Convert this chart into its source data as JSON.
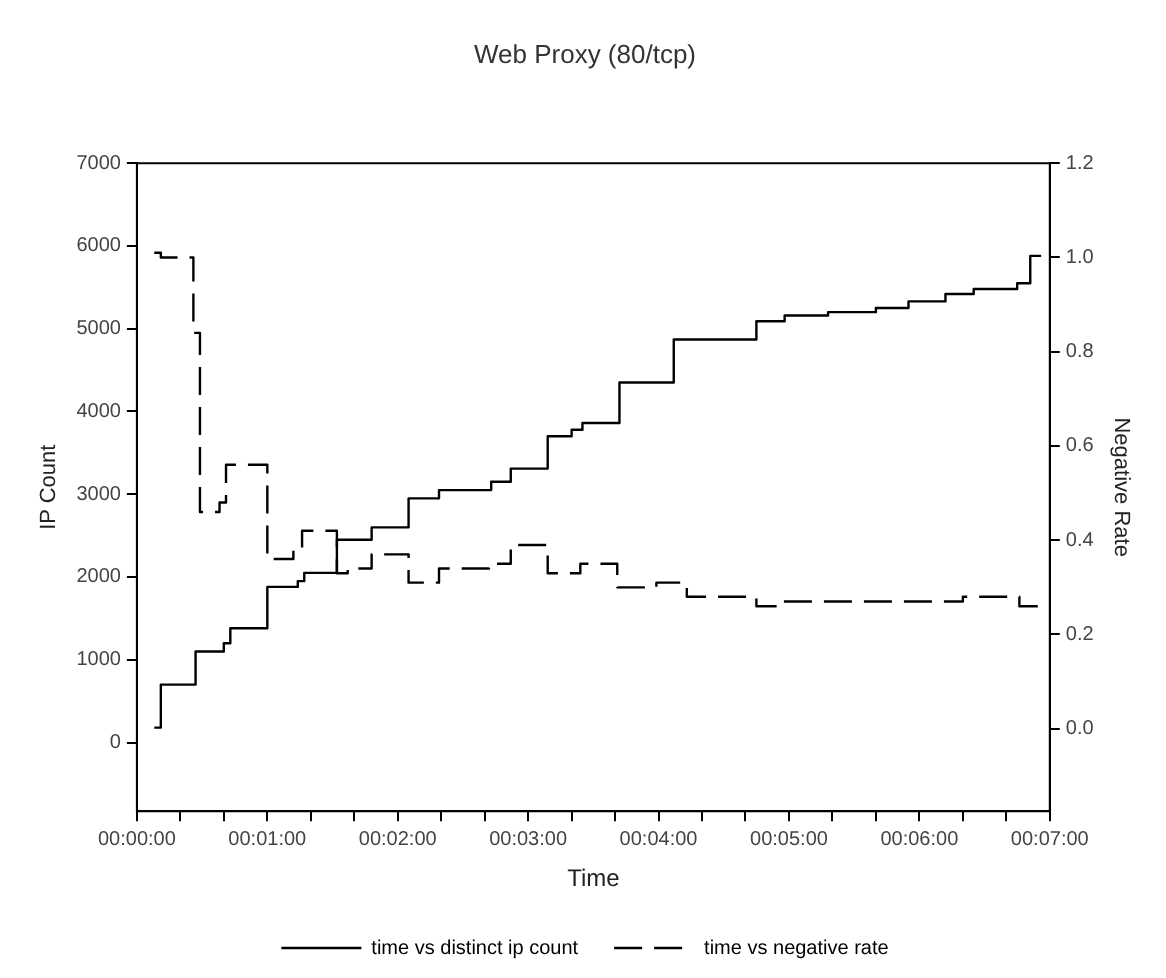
{
  "chart_data": {
    "type": "step",
    "title": "Web Proxy (80/tcp)",
    "xlabel": "Time",
    "ylabel": "IP Count",
    "y2label": "Negative Rate",
    "xlim": [
      0,
      0.116667
    ],
    "xticks": [
      {
        "value": 0,
        "label": "00:00:00"
      },
      {
        "value": 0.005556,
        "label": null
      },
      {
        "value": 0.011111,
        "label": null
      },
      {
        "value": 0.016667,
        "label": "00:01:00"
      },
      {
        "value": 0.022222,
        "label": null
      },
      {
        "value": 0.027778,
        "label": null
      },
      {
        "value": 0.033333,
        "label": "00:02:00"
      },
      {
        "value": 0.038889,
        "label": null
      },
      {
        "value": 0.044444,
        "label": null
      },
      {
        "value": 0.05,
        "label": "00:03:00"
      },
      {
        "value": 0.055556,
        "label": null
      },
      {
        "value": 0.061111,
        "label": null
      },
      {
        "value": 0.066667,
        "label": "00:04:00"
      },
      {
        "value": 0.072222,
        "label": null
      },
      {
        "value": 0.077778,
        "label": null
      },
      {
        "value": 0.083333,
        "label": "00:05:00"
      },
      {
        "value": 0.088889,
        "label": null
      },
      {
        "value": 0.094444,
        "label": null
      },
      {
        "value": 0.1,
        "label": "00:06:00"
      },
      {
        "value": 0.105556,
        "label": null
      },
      {
        "value": 0.111111,
        "label": null
      },
      {
        "value": 0.116667,
        "label": "00:07:00"
      }
    ],
    "ylim": [
      -830,
      7000
    ],
    "yticks": [
      0,
      1000,
      2000,
      3000,
      4000,
      5000,
      6000,
      7000
    ],
    "y2lim": [
      -0.175,
      1.2
    ],
    "y2ticks": [
      {
        "value": 0,
        "label": "0.0"
      },
      {
        "value": 0.2,
        "label": "0.2"
      },
      {
        "value": 0.4,
        "label": "0.4"
      },
      {
        "value": 0.6,
        "label": "0.6"
      },
      {
        "value": 0.8,
        "label": "0.8"
      },
      {
        "value": 1,
        "label": "1.0"
      },
      {
        "value": 1.2,
        "label": "1.2"
      }
    ],
    "grid": false,
    "legend": "bottom",
    "marker": "none",
    "series": [
      {
        "name": "time vs distinct ip count",
        "color": "#000000",
        "line_style": "solid",
        "x": [
          0.00222,
          0.00306,
          0.0075,
          0.01111,
          0.01194,
          0.01667,
          0.02056,
          0.02139,
          0.02556,
          0.03,
          0.03472,
          0.03861,
          0.04528,
          0.04778,
          0.0525,
          0.05556,
          0.05694,
          0.06167,
          0.06861,
          0.07917,
          0.08278,
          0.08833,
          0.09444,
          0.09861,
          0.10333,
          0.10694,
          0.1125,
          0.11417,
          0.11556
        ],
        "values": [
          180,
          700,
          1100,
          1200,
          1380,
          1880,
          1950,
          2050,
          2450,
          2600,
          2950,
          3050,
          3150,
          3310,
          3700,
          3780,
          3860,
          4350,
          4870,
          5090,
          5160,
          5200,
          5250,
          5330,
          5420,
          5480,
          5550,
          5880,
          5880
        ]
      },
      {
        "name": "time vs negative rate",
        "color": "#000000",
        "line_style": "dashed",
        "axis": "y2",
        "x": [
          0.00222,
          0.00306,
          0.00722,
          0.00806,
          0.01056,
          0.01139,
          0.01667,
          0.02,
          0.02111,
          0.02556,
          0.02694,
          0.03,
          0.03472,
          0.03861,
          0.045,
          0.04778,
          0.0525,
          0.05667,
          0.06139,
          0.06639,
          0.07028,
          0.07917,
          0.08222,
          0.10556,
          0.11278,
          0.11528
        ],
        "values": [
          1.01,
          1.0,
          0.84,
          0.46,
          0.48,
          0.56,
          0.36,
          0.38,
          0.42,
          0.33,
          0.34,
          0.37,
          0.31,
          0.34,
          0.35,
          0.39,
          0.33,
          0.35,
          0.3,
          0.31,
          0.28,
          0.26,
          0.27,
          0.28,
          0.26,
          0.26
        ]
      }
    ]
  }
}
